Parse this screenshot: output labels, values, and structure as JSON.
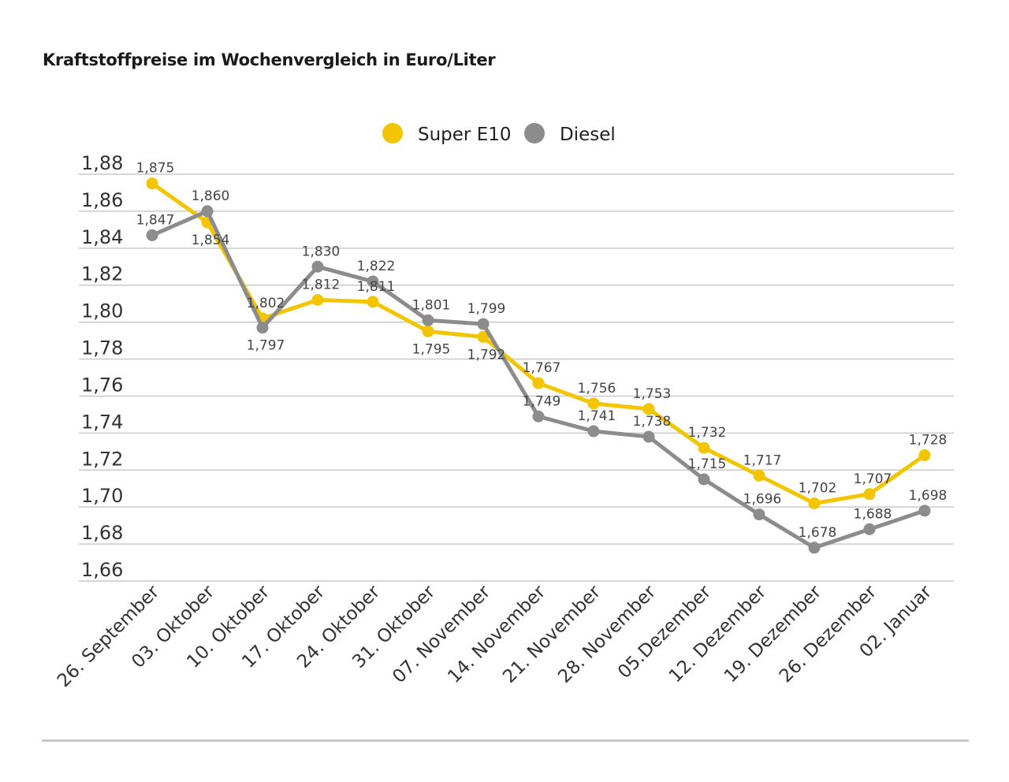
{
  "chart_data": {
    "type": "line",
    "title": "Kraftstoffpreise im Wochenvergleich in Euro/Liter",
    "categories": [
      "26. September",
      "03. Oktober",
      "10. Oktober",
      "17. Oktober",
      "24. Oktober",
      "31. Oktober",
      "07. November",
      "14. November",
      "21. November",
      "28. November",
      "05.Dezember",
      "12. Dezember",
      "19. Dezember",
      "26. Dezember",
      "02. Januar"
    ],
    "series": [
      {
        "name": "Super E10",
        "color": "#f2c500",
        "values": [
          1.875,
          1.854,
          1.802,
          1.812,
          1.811,
          1.795,
          1.792,
          1.767,
          1.756,
          1.753,
          1.732,
          1.717,
          1.702,
          1.707,
          1.728
        ],
        "labels": [
          "1,875",
          "1,854",
          "1,802",
          "1,812",
          "1,811",
          "1,795",
          "1,792",
          "1,767",
          "1,756",
          "1,753",
          "1,732",
          "1,717",
          "1,702",
          "1,707",
          "1,728"
        ]
      },
      {
        "name": "Diesel",
        "color": "#8c8c8c",
        "values": [
          1.847,
          1.86,
          1.797,
          1.83,
          1.822,
          1.801,
          1.799,
          1.749,
          1.741,
          1.738,
          1.715,
          1.696,
          1.678,
          1.688,
          1.698
        ],
        "labels": [
          "1,847",
          "1,860",
          "1,797",
          "1,830",
          "1,822",
          "1,801",
          "1,799",
          "1,749",
          "1,741",
          "1,738",
          "1,715",
          "1,696",
          "1,678",
          "1,688",
          "1,698"
        ]
      }
    ],
    "yticks": [
      {
        "value": 1.88,
        "label": "1,88"
      },
      {
        "value": 1.86,
        "label": "1,86"
      },
      {
        "value": 1.84,
        "label": "1,84"
      },
      {
        "value": 1.82,
        "label": "1,82"
      },
      {
        "value": 1.8,
        "label": "1,80"
      },
      {
        "value": 1.78,
        "label": "1,78"
      },
      {
        "value": 1.76,
        "label": "1,76"
      },
      {
        "value": 1.74,
        "label": "1,74"
      },
      {
        "value": 1.72,
        "label": "1,72"
      },
      {
        "value": 1.7,
        "label": "1,70"
      },
      {
        "value": 1.68,
        "label": "1,68"
      },
      {
        "value": 1.66,
        "label": "1,66"
      }
    ],
    "ylim": [
      1.66,
      1.88
    ],
    "grid": true,
    "legend": "top-center"
  }
}
